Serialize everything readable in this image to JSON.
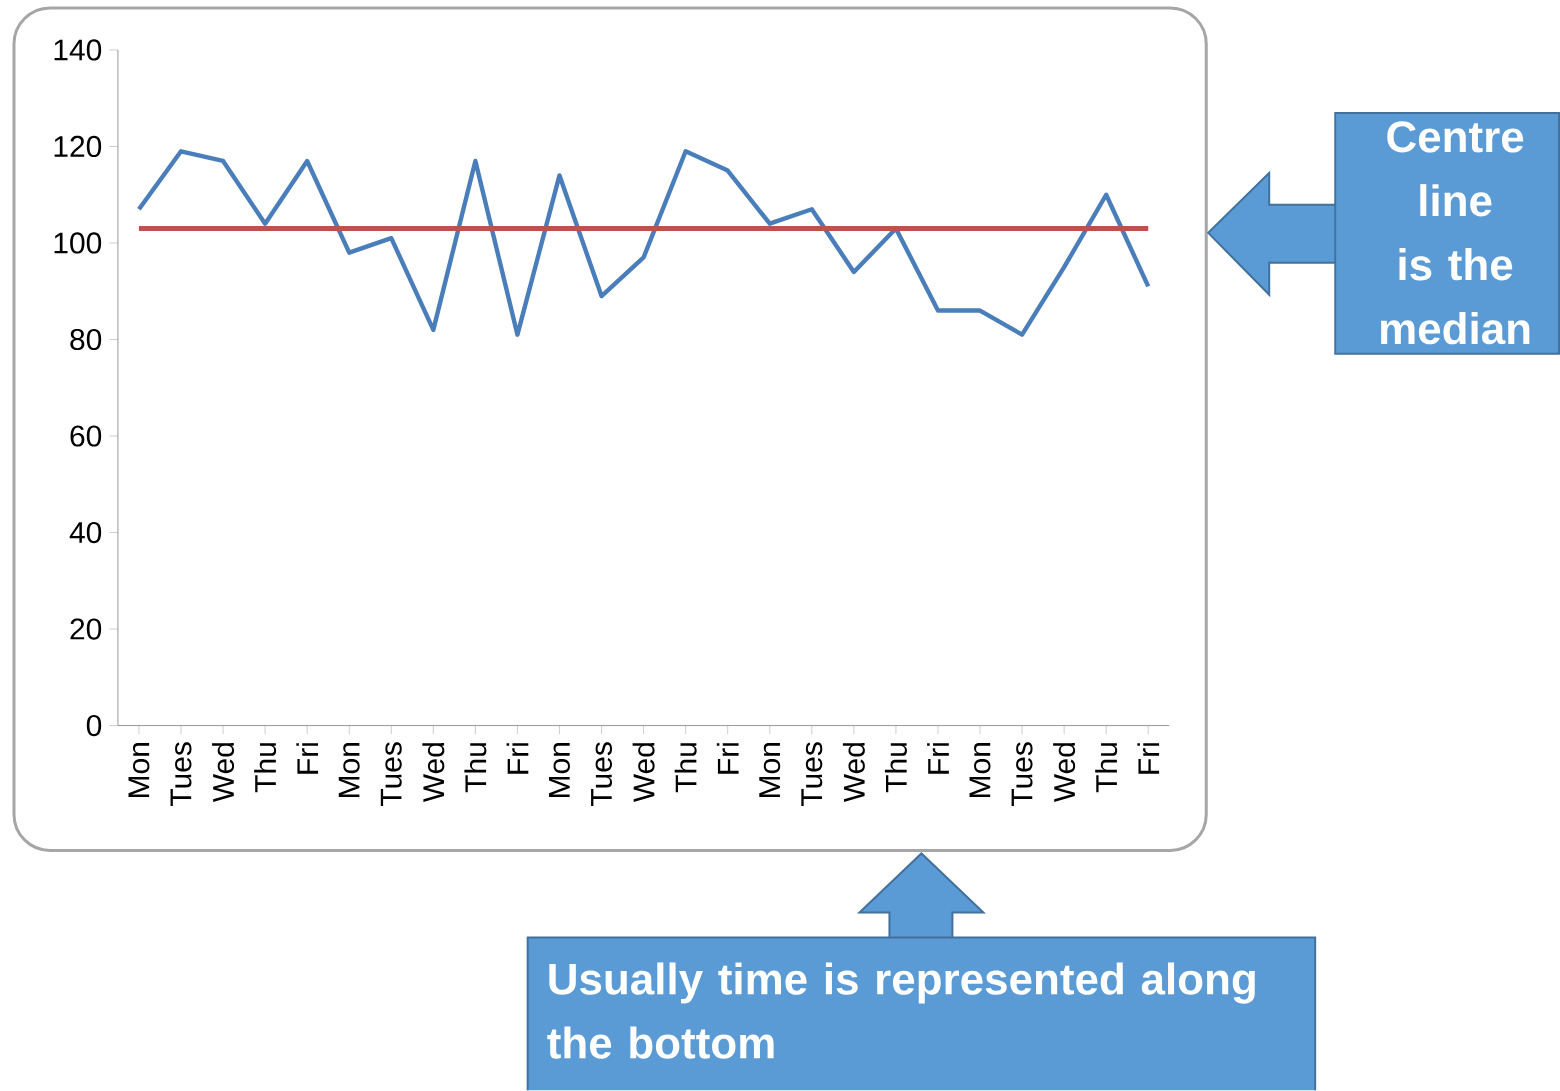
{
  "chart_data": {
    "type": "line",
    "categories": [
      "Mon",
      "Tues",
      "Wed",
      "Thu",
      "Fri",
      "Mon",
      "Tues",
      "Wed",
      "Thu",
      "Fri",
      "Mon",
      "Tues",
      "Wed",
      "Thu",
      "Fri",
      "Mon",
      "Tues",
      "Wed",
      "Thu",
      "Fri",
      "Mon",
      "Tues",
      "Wed",
      "Thu",
      "Fri"
    ],
    "series": [
      {
        "color": "#4a7ebb",
        "values": [
          107,
          119,
          117,
          104,
          117,
          98,
          101,
          82,
          117,
          81,
          114,
          89,
          97,
          119,
          115,
          104,
          107,
          94,
          103,
          86,
          86,
          81,
          95,
          110,
          91
        ]
      }
    ],
    "ylim": [
      0,
      140
    ],
    "yticks": [
      0,
      20,
      40,
      60,
      80,
      100,
      120,
      140
    ],
    "ref_lines": [
      {
        "axis": "y",
        "value": 103,
        "color": "#c0504d"
      }
    ],
    "annotations": [
      "Centre line is the median",
      "Usually time is represented along the bottom"
    ]
  }
}
